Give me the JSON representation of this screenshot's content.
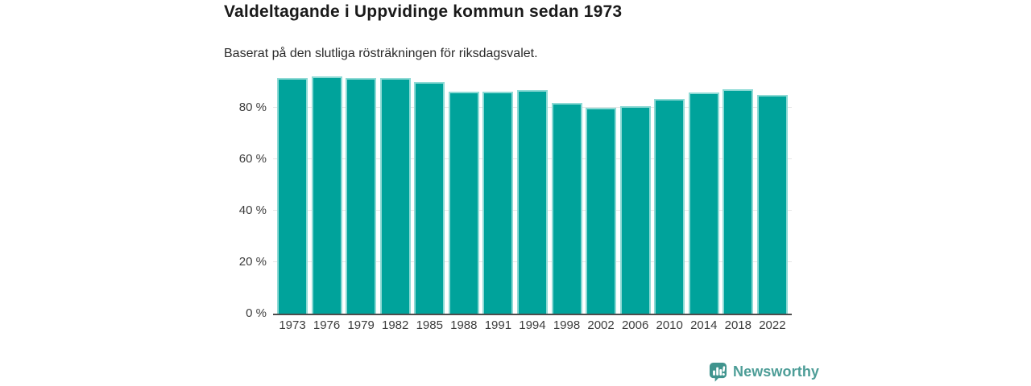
{
  "title": "Valdeltagande i Uppvidinge kommun sedan 1973",
  "subtitle": "Baserat på den slutliga rösträkningen för riksdagsvalet.",
  "chart_data": {
    "type": "bar",
    "categories": [
      "1973",
      "1976",
      "1979",
      "1982",
      "1985",
      "1988",
      "1991",
      "1994",
      "1998",
      "2002",
      "2006",
      "2010",
      "2014",
      "2018",
      "2022"
    ],
    "values": [
      91.5,
      92.3,
      91.7,
      91.6,
      90.0,
      86.2,
      86.2,
      87.0,
      81.8,
      80.1,
      80.7,
      83.3,
      85.8,
      87.1,
      85.1
    ],
    "unit": "%",
    "title": "Valdeltagande i Uppvidinge kommun sedan 1973",
    "xlabel": "",
    "ylabel": "",
    "ylim": [
      0,
      95.3
    ],
    "y_ticks": [
      {
        "value": 0,
        "label": "0 %"
      },
      {
        "value": 20,
        "label": "20 %"
      },
      {
        "value": 40,
        "label": "40 %"
      },
      {
        "value": 60,
        "label": "60 %"
      },
      {
        "value": 80,
        "label": "80 %"
      }
    ],
    "grid": "horizontal",
    "legend": "none",
    "bar_color": "#00a39b",
    "bar_edge_color": "#8edad5",
    "grid_color": "#e6e6e6",
    "axis_color": "#4d4d4d"
  },
  "branding": {
    "name": "Newsworthy",
    "color": "#4d9d97",
    "icon": "newsworthy-speech-bubble-bar-chart-icon",
    "icon_color": "#40948e"
  }
}
